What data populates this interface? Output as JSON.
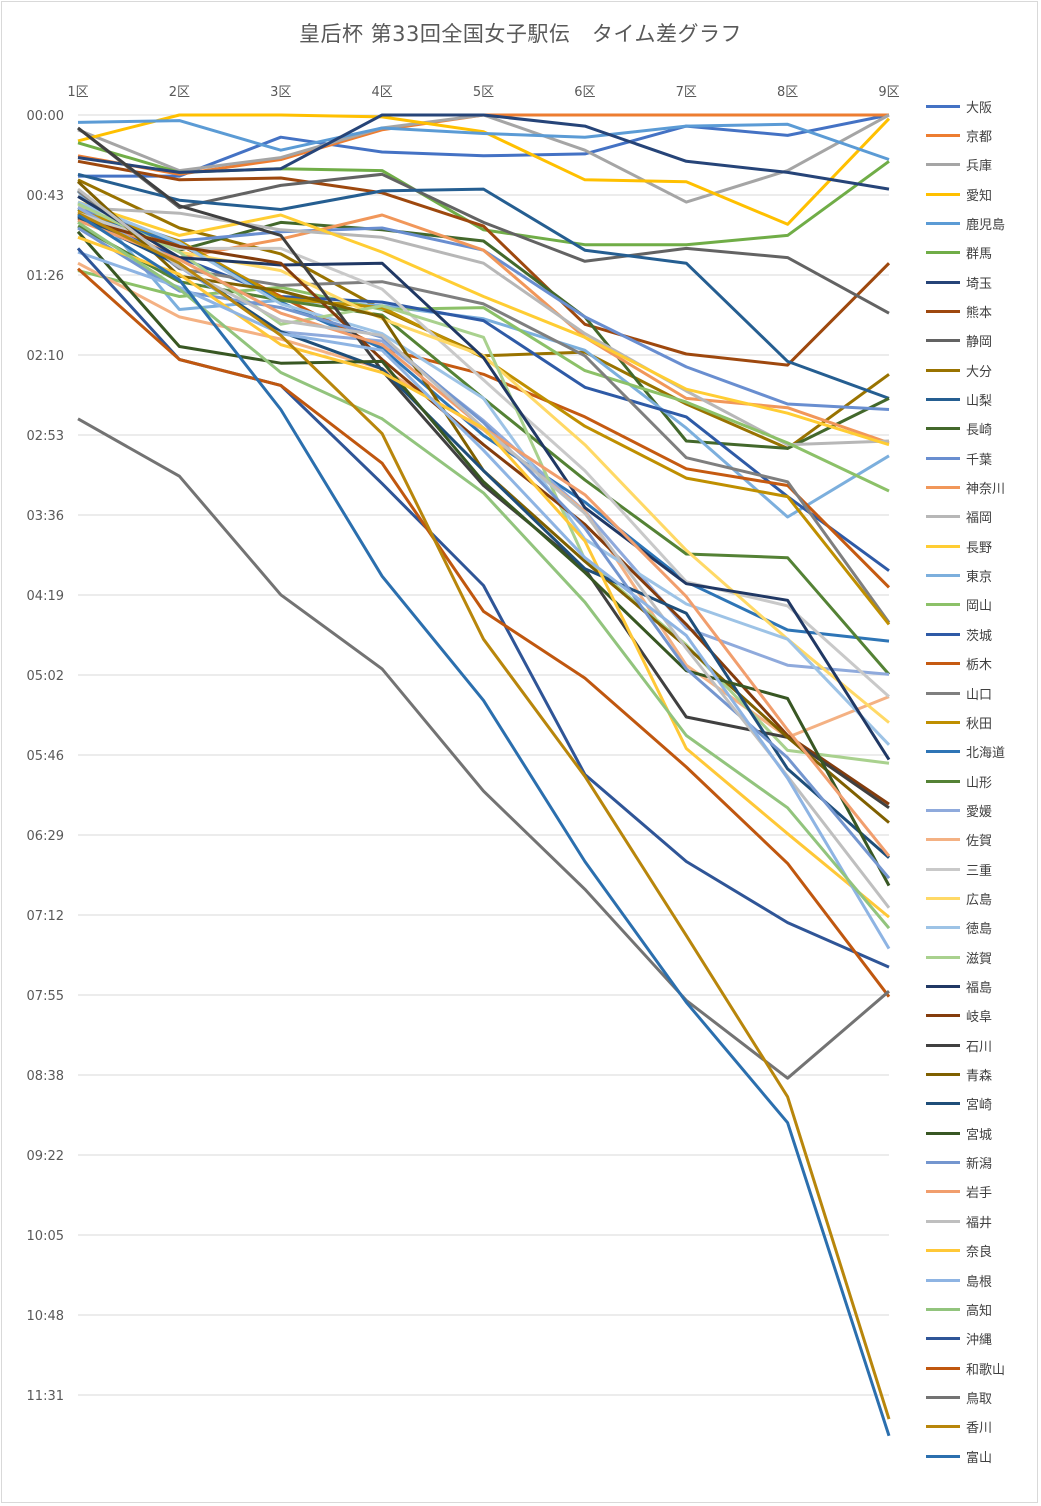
{
  "chart_data": {
    "type": "line",
    "title": "皇后杯 第33回全国女子駅伝　タイム差グラフ",
    "x": [
      "1区",
      "2区",
      "3区",
      "4区",
      "5区",
      "6区",
      "7区",
      "8区",
      "9区"
    ],
    "y_ticks": [
      "00:00",
      "00:43",
      "01:26",
      "02:10",
      "02:53",
      "03:36",
      "04:19",
      "05:02",
      "05:46",
      "06:29",
      "07:12",
      "07:55",
      "08:38",
      "09:22",
      "10:05",
      "10:48",
      "11:31"
    ],
    "ylim": [
      "00:00",
      "12:14"
    ],
    "y_inverted": true,
    "grid": true,
    "legend_position": "right",
    "series": [
      {
        "name": "大阪",
        "color": "#4472C4",
        "values": [
          "00:33",
          "00:33",
          "00:12",
          "00:20",
          "00:22",
          "00:21",
          "00:06",
          "00:11",
          "00:00"
        ]
      },
      {
        "name": "京都",
        "color": "#ED7D31",
        "values": [
          "00:22",
          "00:32",
          "00:24",
          "00:08",
          "00:00",
          "00:00",
          "00:00",
          "00:00",
          "00:00"
        ]
      },
      {
        "name": "兵庫",
        "color": "#A5A5A5",
        "values": [
          "00:08",
          "00:30",
          "00:23",
          "00:07",
          "00:00",
          "00:19",
          "00:47",
          "00:30",
          "00:00"
        ]
      },
      {
        "name": "愛知",
        "color": "#FFC000",
        "values": [
          "00:14",
          "00:00",
          "00:00",
          "00:01",
          "00:09",
          "00:35",
          "00:36",
          "00:59",
          "00:02"
        ]
      },
      {
        "name": "鹿児島",
        "color": "#5B9BD5",
        "values": [
          "00:04",
          "00:03",
          "00:19",
          "00:07",
          "00:10",
          "00:12",
          "00:06",
          "00:05",
          "00:24"
        ]
      },
      {
        "name": "群馬",
        "color": "#70AD47",
        "values": [
          "00:15",
          "00:31",
          "00:29",
          "00:30",
          "01:02",
          "01:10",
          "01:10",
          "01:05",
          "00:25"
        ]
      },
      {
        "name": "埼玉",
        "color": "#264478",
        "values": [
          "00:23",
          "00:31",
          "00:29",
          "00:00",
          "00:00",
          "00:06",
          "00:25",
          "00:31",
          "00:40"
        ]
      },
      {
        "name": "熊本",
        "color": "#9E480E",
        "values": [
          "00:25",
          "00:35",
          "00:34",
          "00:42",
          "01:00",
          "01:53",
          "02:09",
          "02:15",
          "01:20"
        ]
      },
      {
        "name": "静岡",
        "color": "#636363",
        "values": [
          "00:07",
          "00:50",
          "00:38",
          "00:32",
          "00:58",
          "01:19",
          "01:12",
          "01:17",
          "01:47"
        ]
      },
      {
        "name": "大分",
        "color": "#997300",
        "values": [
          "00:35",
          "01:01",
          "01:15",
          "01:45",
          "02:10",
          "02:08",
          "02:36",
          "03:00",
          "02:20"
        ]
      },
      {
        "name": "山梨",
        "color": "#255E91",
        "values": [
          "00:32",
          "00:46",
          "00:51",
          "00:41",
          "00:40",
          "01:13",
          "01:20",
          "02:13",
          "02:33"
        ]
      },
      {
        "name": "長崎",
        "color": "#43682B",
        "values": [
          "00:51",
          "01:13",
          "00:58",
          "01:02",
          "01:08",
          "01:49",
          "02:56",
          "03:00",
          "02:33"
        ]
      },
      {
        "name": "千葉",
        "color": "#698ED0",
        "values": [
          "00:50",
          "01:08",
          "01:03",
          "01:01",
          "01:13",
          "01:49",
          "02:16",
          "02:36",
          "02:39"
        ]
      },
      {
        "name": "神奈川",
        "color": "#F1975A",
        "values": [
          "00:53",
          "01:17",
          "01:07",
          "00:54",
          "01:13",
          "02:00",
          "02:33",
          "02:38",
          "02:57"
        ]
      },
      {
        "name": "福岡",
        "color": "#B7B7B7",
        "values": [
          "00:50",
          "00:53",
          "01:02",
          "01:06",
          "01:20",
          "01:58",
          "02:29",
          "02:58",
          "02:56"
        ]
      },
      {
        "name": "長野",
        "color": "#FFCD33",
        "values": [
          "00:47",
          "01:05",
          "00:54",
          "01:14",
          "01:38",
          "02:00",
          "02:28",
          "02:41",
          "02:58"
        ]
      },
      {
        "name": "東京",
        "color": "#7CAFDD",
        "values": [
          "00:41",
          "01:45",
          "01:40",
          "01:43",
          "01:50",
          "02:07",
          "02:49",
          "03:37",
          "03:04"
        ]
      },
      {
        "name": "岡山",
        "color": "#8CC168",
        "values": [
          "01:24",
          "01:38",
          "01:33",
          "01:45",
          "01:44",
          "02:18",
          "02:35",
          "02:57",
          "03:23"
        ]
      },
      {
        "name": "茨城",
        "color": "#2E5AA6",
        "values": [
          "00:55",
          "01:17",
          "01:38",
          "01:41",
          "01:51",
          "02:27",
          "02:43",
          "03:26",
          "04:06"
        ]
      },
      {
        "name": "栃木",
        "color": "#C55A11",
        "values": [
          "00:57",
          "01:10",
          "01:38",
          "02:06",
          "02:20",
          "02:43",
          "03:11",
          "03:20",
          "04:15"
        ]
      },
      {
        "name": "山口",
        "color": "#7F7F7F",
        "values": [
          "00:41",
          "01:23",
          "01:32",
          "01:30",
          "01:42",
          "02:10",
          "03:05",
          "03:18",
          "04:34"
        ]
      },
      {
        "name": "秋田",
        "color": "#BF8F00",
        "values": [
          "00:52",
          "01:08",
          "01:39",
          "01:44",
          "02:11",
          "02:48",
          "03:16",
          "03:26",
          "04:35"
        ]
      },
      {
        "name": "北海道",
        "color": "#2E75B6",
        "values": [
          "00:54",
          "01:09",
          "01:41",
          "02:06",
          "02:53",
          "03:29",
          "04:12",
          "04:38",
          "04:44"
        ]
      },
      {
        "name": "山形",
        "color": "#548235",
        "values": [
          "01:00",
          "01:30",
          "01:40",
          "01:48",
          "02:33",
          "03:17",
          "03:57",
          "03:59",
          "05:02"
        ]
      },
      {
        "name": "愛媛",
        "color": "#8FAADC",
        "values": [
          "00:50",
          "01:22",
          "01:57",
          "02:02",
          "02:45",
          "03:34",
          "04:37",
          "04:57",
          "05:02"
        ]
      },
      {
        "name": "佐賀",
        "color": "#F4B183",
        "values": [
          "01:20",
          "01:49",
          "02:01",
          "02:17",
          "02:50",
          "03:34",
          "04:57",
          "05:36",
          "05:14"
        ]
      },
      {
        "name": "三重",
        "color": "#C9C9C9",
        "values": [
          "00:53",
          "01:12",
          "01:12",
          "01:34",
          "02:23",
          "03:12",
          "04:12",
          "04:25",
          "05:14"
        ]
      },
      {
        "name": "広島",
        "color": "#FFD966",
        "values": [
          "00:48",
          "01:14",
          "01:24",
          "01:50",
          "02:10",
          "02:58",
          "03:55",
          "04:43",
          "05:28"
        ]
      },
      {
        "name": "徳島",
        "color": "#9DC3E6",
        "values": [
          "00:47",
          "01:09",
          "01:42",
          "01:58",
          "02:33",
          "03:49",
          "04:24",
          "04:43",
          "05:40"
        ]
      },
      {
        "name": "滋賀",
        "color": "#A9D18E",
        "values": [
          "00:48",
          "01:14",
          "01:53",
          "01:43",
          "02:00",
          "04:00",
          "04:46",
          "05:43",
          "05:50"
        ]
      },
      {
        "name": "福島",
        "color": "#203864",
        "values": [
          "00:44",
          "01:17",
          "01:21",
          "01:20",
          "02:11",
          "03:32",
          "04:13",
          "04:22",
          "05:48"
        ]
      },
      {
        "name": "岐阜",
        "color": "#843C0C",
        "values": [
          "00:56",
          "01:11",
          "01:20",
          "02:12",
          "02:58",
          "03:41",
          "04:35",
          "05:35",
          "06:12"
        ]
      },
      {
        "name": "石川",
        "color": "#404040",
        "values": [
          "00:07",
          "00:49",
          "01:05",
          "02:18",
          "03:20",
          "04:05",
          "05:25",
          "05:36",
          "06:14"
        ]
      },
      {
        "name": "青森",
        "color": "#7F6000",
        "values": [
          "00:36",
          "01:27",
          "01:35",
          "01:49",
          "03:12",
          "4:01",
          "04:47",
          "05:36",
          "06:22"
        ]
      },
      {
        "name": "宮崎",
        "color": "#1F4E79",
        "values": [
          "00:55",
          "01:21",
          "01:57",
          "02:17",
          "03:12",
          "04:05",
          "04:29",
          "05:53",
          "06:41"
        ]
      },
      {
        "name": "宮城",
        "color": "#385723",
        "values": [
          "01:03",
          "02:05",
          "02:14",
          "02:13",
          "03:18",
          "04:07",
          "05:00",
          "05:15",
          "06:56"
        ]
      },
      {
        "name": "新潟",
        "color": "#7496CF",
        "values": [
          "01:01",
          "01:35",
          "01:44",
          "02:00",
          "02:46",
          "03:43",
          "04:59",
          "05:47",
          "06:52"
        ]
      },
      {
        "name": "岩手",
        "color": "#F19E6D",
        "values": [
          "00:57",
          "01:18",
          "01:47",
          "02:04",
          "02:49",
          "03:25",
          "04:20",
          "05:32",
          "06:40"
        ]
      },
      {
        "name": "福井",
        "color": "#BFBFBF",
        "values": [
          "00:40",
          "01:22",
          "01:51",
          "01:59",
          "02:49",
          "03:35",
          "04:48",
          "05:57",
          "07:08"
        ]
      },
      {
        "name": "奈良",
        "color": "#FFC837",
        "values": [
          "01:06",
          "01:26",
          "02:04",
          "02:19",
          "02:49",
          "03:50",
          "05:42",
          "06:28",
          "07:13"
        ]
      },
      {
        "name": "島根",
        "color": "#8EB4E3",
        "values": [
          "01:14",
          "01:33",
          "01:58",
          "02:07",
          "03:01",
          "03:59",
          "04:41",
          "05:58",
          "07:30"
        ]
      },
      {
        "name": "高知",
        "color": "#92C47D",
        "values": [
          "00:58",
          "01:34",
          "02:19",
          "02:44",
          "03:24",
          "04:23",
          "05:35",
          "06:14",
          "07:19"
        ]
      },
      {
        "name": "沖縄",
        "color": "#2F5597",
        "values": [
          "01:12",
          "02:12",
          "02:26",
          "03:19",
          "04:14",
          "05:56",
          "06:43",
          "07:16",
          "07:40"
        ]
      },
      {
        "name": "和歌山",
        "color": "#C0570F",
        "values": [
          "01:23",
          "02:12",
          "02:26",
          "03:08",
          "04:28",
          "05:04",
          "05:52",
          "06:44",
          "07:56"
        ]
      },
      {
        "name": "鳥取",
        "color": "#737373",
        "values": [
          "02:44",
          "03:15",
          "04:19",
          "04:59",
          "06:05",
          "06:58",
          "07:58",
          "08:40",
          "07:53"
        ]
      },
      {
        "name": "香川",
        "color": "#B8860B",
        "values": [
          "00:53",
          "01:20",
          "01:59",
          "02:52",
          "04:43",
          "05:57",
          "07:23",
          "08:50",
          "11:44"
        ]
      },
      {
        "name": "富山",
        "color": "#2B6FAE",
        "values": [
          "00:54",
          "01:29",
          "02:39",
          "04:09",
          "05:16",
          "06:43",
          "07:59",
          "09:04",
          "11:53"
        ]
      }
    ]
  }
}
